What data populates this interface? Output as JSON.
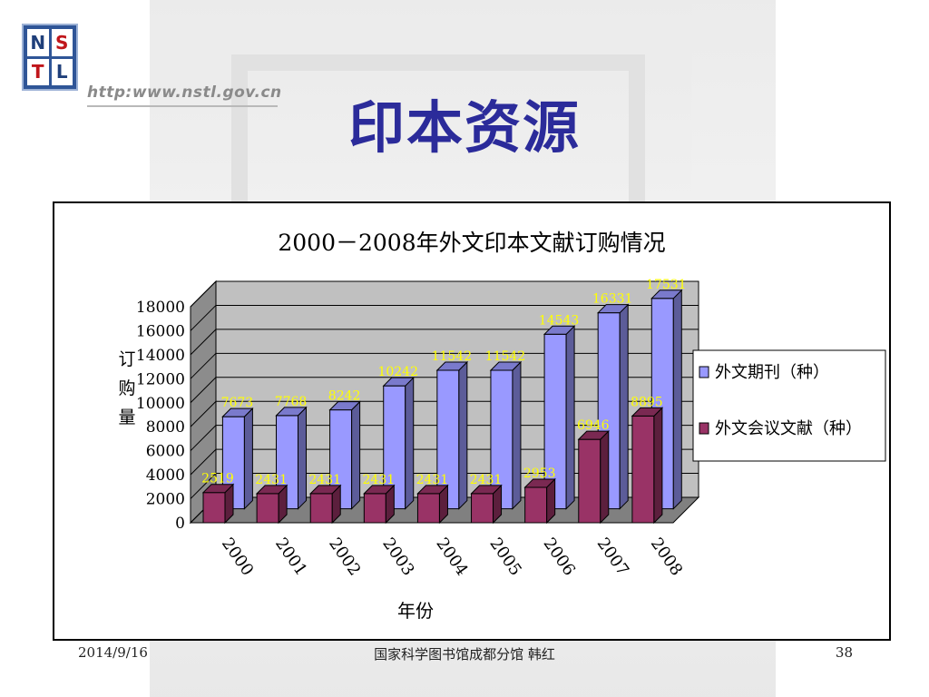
{
  "slide": {
    "title": "印本资源",
    "logo_letters": [
      "N",
      "S",
      "T",
      "L"
    ],
    "url": "http:www.nstl.gov.cn"
  },
  "footer": {
    "date": "2014/9/16",
    "center": "国家科学图书馆成都分馆 韩红",
    "page": "38"
  },
  "colors": {
    "series1": "#9999ff",
    "series2": "#993366",
    "label": "#ffff00",
    "title": "#2b2b9a"
  },
  "chart_data": {
    "type": "bar",
    "title": "2000－2008年外文印本文献订购情况",
    "xlabel": "年份",
    "ylabel": "订购量",
    "categories": [
      "2000",
      "2001",
      "2002",
      "2003",
      "2004",
      "2005",
      "2006",
      "2007",
      "2008"
    ],
    "series": [
      {
        "name": "外文期刊（种）",
        "values": [
          7673,
          7768,
          8242,
          10242,
          11542,
          11542,
          14543,
          16331,
          17531
        ]
      },
      {
        "name": "外文会议文献（种）",
        "values": [
          2519,
          2431,
          2431,
          2431,
          2431,
          2431,
          2953,
          6946,
          8895
        ]
      }
    ],
    "data_labels": [
      [
        "7673",
        "7768",
        "8242",
        "10242",
        "11542",
        "11542",
        "14543",
        "16331",
        "17531"
      ],
      [
        "2519",
        "2431",
        "2431",
        "2431",
        "2431",
        "2431",
        "2953",
        "6946",
        "8895"
      ]
    ],
    "ylim": [
      0,
      18000
    ],
    "yticks": [
      "0",
      "2000",
      "4000",
      "6000",
      "8000",
      "10000",
      "12000",
      "14000",
      "16000",
      "18000"
    ],
    "grid": true,
    "legend": "right",
    "style": "3d"
  }
}
